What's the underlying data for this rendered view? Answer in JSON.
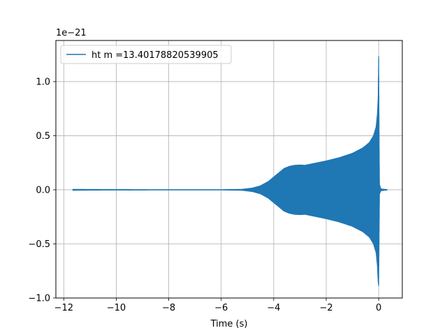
{
  "chart_data": {
    "type": "line",
    "title": "",
    "xlabel": "Time (s)",
    "ylabel": "",
    "y_scale_label": "1e−21",
    "y_scale": 1e-21,
    "xlim": [
      -12.3,
      0.9
    ],
    "ylim": [
      -1.0,
      1.38
    ],
    "xticks": [
      -12,
      -10,
      -8,
      -6,
      -4,
      -2,
      0
    ],
    "xtick_labels": [
      "−12",
      "−10",
      "−8",
      "−6",
      "−4",
      "−2",
      "0"
    ],
    "yticks": [
      -1.0,
      -0.5,
      0.0,
      0.5,
      1.0
    ],
    "ytick_labels": [
      "−1.0",
      "−0.5",
      "0.0",
      "0.5",
      "1.0"
    ],
    "grid": true,
    "legend_position": "top-left",
    "series": [
      {
        "name": "ht m =13.40178820539905",
        "color": "#1f77b4",
        "style": "oscillating-chirp",
        "x_range": [
          -11.65,
          0.32
        ],
        "upper_envelope": [
          [
            -11.65,
            0.008
          ],
          [
            -10.5,
            0.006
          ],
          [
            -8.0,
            0.005
          ],
          [
            -6.0,
            0.005
          ],
          [
            -5.2,
            0.008
          ],
          [
            -4.8,
            0.02
          ],
          [
            -4.5,
            0.04
          ],
          [
            -4.2,
            0.08
          ],
          [
            -4.0,
            0.12
          ],
          [
            -3.8,
            0.16
          ],
          [
            -3.6,
            0.2
          ],
          [
            -3.4,
            0.22
          ],
          [
            -3.2,
            0.23
          ],
          [
            -3.0,
            0.233
          ],
          [
            -2.8,
            0.23
          ],
          [
            -2.5,
            0.245
          ],
          [
            -2.0,
            0.27
          ],
          [
            -1.5,
            0.3
          ],
          [
            -1.0,
            0.34
          ],
          [
            -0.6,
            0.39
          ],
          [
            -0.35,
            0.44
          ],
          [
            -0.2,
            0.5
          ],
          [
            -0.1,
            0.58
          ],
          [
            -0.05,
            0.7
          ],
          [
            -0.02,
            0.85
          ],
          [
            0.0,
            1.27
          ],
          [
            0.015,
            0.6
          ],
          [
            0.03,
            0.05
          ],
          [
            0.08,
            0.012
          ],
          [
            0.32,
            0.005
          ]
        ],
        "lower_envelope": [
          [
            -11.65,
            -0.008
          ],
          [
            -10.5,
            -0.006
          ],
          [
            -8.0,
            -0.005
          ],
          [
            -6.0,
            -0.005
          ],
          [
            -5.2,
            -0.008
          ],
          [
            -4.8,
            -0.02
          ],
          [
            -4.5,
            -0.04
          ],
          [
            -4.2,
            -0.08
          ],
          [
            -4.0,
            -0.12
          ],
          [
            -3.8,
            -0.16
          ],
          [
            -3.6,
            -0.2
          ],
          [
            -3.4,
            -0.22
          ],
          [
            -3.2,
            -0.23
          ],
          [
            -3.0,
            -0.233
          ],
          [
            -2.8,
            -0.23
          ],
          [
            -2.5,
            -0.245
          ],
          [
            -2.0,
            -0.27
          ],
          [
            -1.5,
            -0.3
          ],
          [
            -1.0,
            -0.34
          ],
          [
            -0.6,
            -0.39
          ],
          [
            -0.35,
            -0.44
          ],
          [
            -0.2,
            -0.5
          ],
          [
            -0.1,
            -0.58
          ],
          [
            -0.05,
            -0.7
          ],
          [
            -0.02,
            -0.85
          ],
          [
            0.0,
            -0.89
          ],
          [
            0.015,
            -0.5
          ],
          [
            0.03,
            -0.04
          ],
          [
            0.08,
            -0.012
          ],
          [
            0.32,
            -0.005
          ]
        ]
      }
    ]
  }
}
